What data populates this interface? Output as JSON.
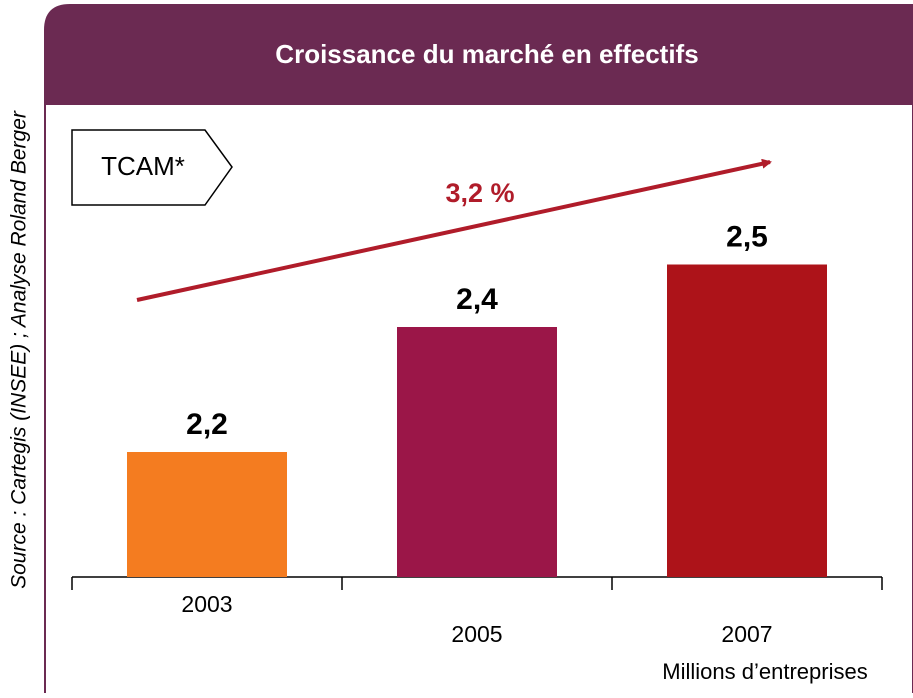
{
  "chart_data": {
    "type": "bar",
    "title": "Croissance du marché en effectifs",
    "source": "Source : Cartegis (INSEE)  ; Analyse Roland Berger",
    "categories": [
      "2003",
      "2005",
      "2007"
    ],
    "values": [
      2.2,
      2.4,
      2.5
    ],
    "value_labels": [
      "2,2",
      "2,4",
      "2,5"
    ],
    "colors": [
      "#f47c20",
      "#9b1648",
      "#ad1319"
    ],
    "ylim": [
      2,
      2.6
    ],
    "annotations": {
      "tag": "TCAM*",
      "growth": "3,2 %"
    },
    "unit_label": "Millions d’entreprises"
  }
}
